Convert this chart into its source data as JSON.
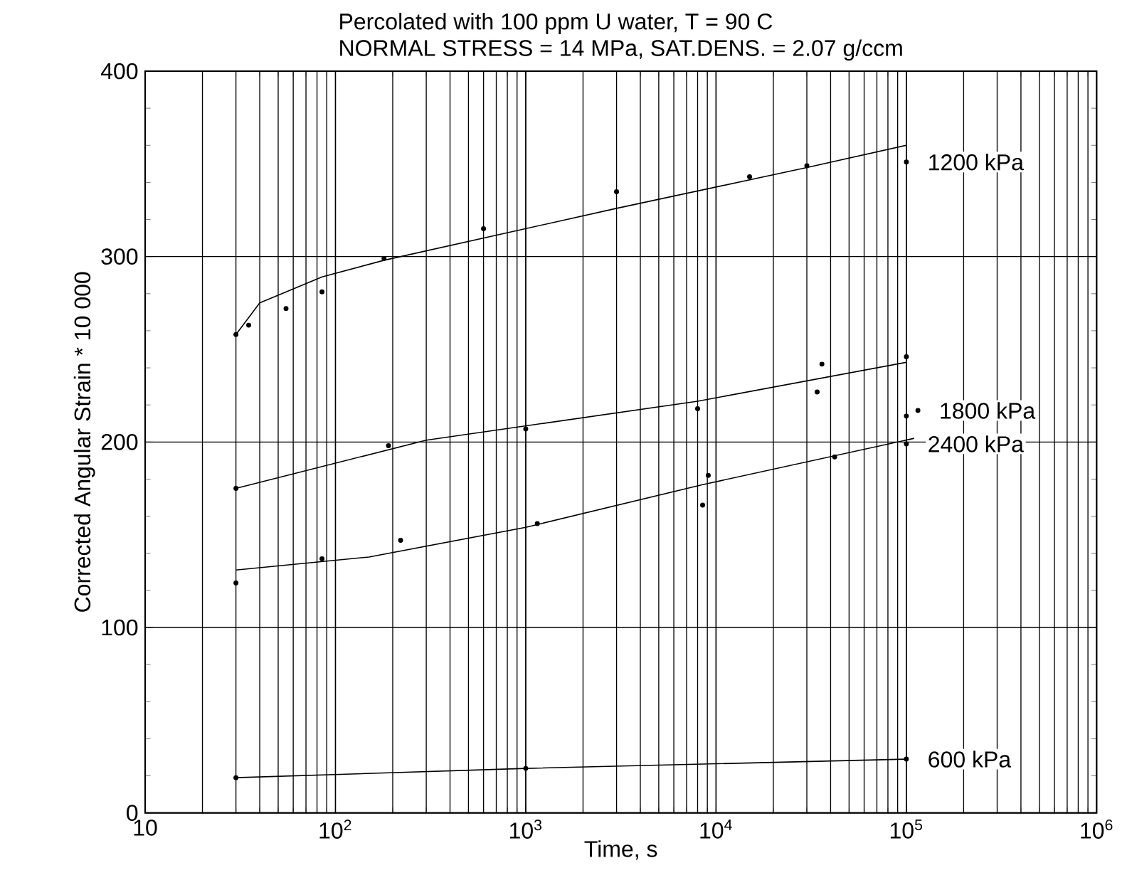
{
  "chart_data": {
    "type": "scatter",
    "title": "Percolated with 100 ppm U water, T = 90 C",
    "subtitle": "NORMAL STRESS = 14 MPa, SAT.DENS. = 2.07 g/ccm",
    "xlabel": "Time, s",
    "ylabel": "Corrected Angular Strain * 10 000",
    "log": "x",
    "grid": true,
    "legend": false,
    "xlim": [
      10,
      1000000
    ],
    "ylim": [
      0,
      400
    ],
    "xticks": [
      10,
      {
        "value": 100,
        "label": "10$^{2}$"
      },
      {
        "value": 1000,
        "label": "10$^{3}$"
      },
      {
        "value": 10000,
        "label": "10$^{4}$"
      },
      {
        "value": 100000,
        "label": "10$^{5}$"
      },
      {
        "value": 1000000,
        "label": "10$^{6}$"
      }
    ],
    "yticks": [
      0,
      100,
      200,
      300,
      400
    ],
    "series": [
      {
        "name": "1200 kPa",
        "color": "#000000",
        "marker": "circle",
        "x": [
          30,
          35,
          55,
          85,
          180,
          600,
          3000,
          15000,
          30000,
          100000
        ],
        "values": [
          258,
          263,
          272,
          281,
          299,
          315,
          335,
          343,
          349,
          351
        ]
      },
      {
        "type": "line",
        "color": "#000000",
        "marker": "none",
        "line_style": "solid",
        "x": [
          30,
          40,
          85,
          180,
          3000,
          30000,
          100000
        ],
        "values": [
          258,
          275,
          289,
          298,
          326,
          348,
          360
        ]
      },
      {
        "name": "1800 kPa",
        "color": "#000000",
        "marker": "circle",
        "x": [
          30,
          190,
          1000,
          8000,
          34000,
          36000,
          100000,
          100000,
          115000
        ],
        "values": [
          175,
          198,
          207,
          218,
          227,
          242,
          246,
          214,
          217
        ]
      },
      {
        "type": "line",
        "color": "#000000",
        "marker": "none",
        "line_style": "solid",
        "x": [
          30,
          300,
          8000,
          100000
        ],
        "values": [
          175,
          201,
          222,
          243
        ]
      },
      {
        "name": "2400 kPa",
        "color": "#000000",
        "marker": "circle",
        "x": [
          30,
          85,
          220,
          1150,
          8500,
          9100,
          42000,
          100000
        ],
        "values": [
          124,
          137,
          147,
          156,
          166,
          182,
          192,
          199
        ]
      },
      {
        "type": "line",
        "color": "#000000",
        "marker": "none",
        "line_style": "solid",
        "x": [
          30,
          150,
          1000,
          8500,
          110000
        ],
        "values": [
          131,
          138,
          154,
          177,
          202
        ]
      },
      {
        "name": "600 kPa",
        "color": "#000000",
        "marker": "circle",
        "x": [
          30,
          1000,
          100000
        ],
        "values": [
          19,
          24,
          29
        ]
      },
      {
        "type": "line",
        "color": "#000000",
        "marker": "none",
        "line_style": "solid",
        "x": [
          30,
          1000,
          100000
        ],
        "values": [
          19,
          24,
          29
        ]
      }
    ]
  }
}
